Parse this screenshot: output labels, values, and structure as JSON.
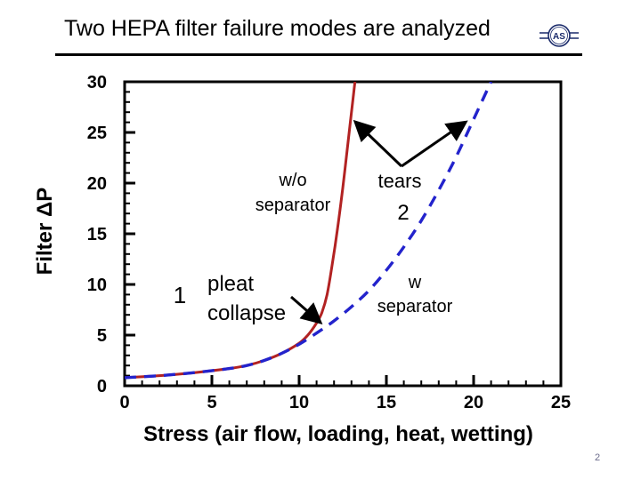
{
  "slide": {
    "title": "Two HEPA filter failure modes are analyzed",
    "logo_text": "AS",
    "page_number": "2"
  },
  "chart_data": {
    "type": "line",
    "xlabel": "Stress (air flow, loading, heat, wetting)",
    "ylabel": "Filter ΔP",
    "xlim": [
      0,
      25
    ],
    "ylim": [
      0,
      30
    ],
    "x_ticks": [
      "0",
      "5",
      "10",
      "15",
      "20",
      "25"
    ],
    "y_ticks": [
      "0",
      "5",
      "10",
      "15",
      "20",
      "25",
      "30"
    ],
    "grid": false,
    "series": [
      {
        "name": "w/o separator",
        "color": "#b22222",
        "style": "solid",
        "x": [
          0,
          2,
          4,
          6,
          7,
          8,
          9,
          10,
          10.5,
          11,
          11.3,
          11.6,
          11.9,
          12.2,
          12.5,
          12.8,
          13.0,
          13.2
        ],
        "y": [
          0.8,
          1.0,
          1.3,
          1.7,
          2.0,
          2.5,
          3.2,
          4.2,
          5.0,
          6.2,
          7.2,
          9.0,
          12.0,
          15.5,
          19.5,
          24.0,
          27.0,
          30.0
        ]
      },
      {
        "name": "w separator",
        "color": "#2323cc",
        "style": "dashed",
        "x": [
          0,
          2,
          4,
          6,
          7,
          8,
          9,
          10,
          11,
          12,
          13,
          14,
          15,
          16,
          17,
          18,
          19,
          20,
          21
        ],
        "y": [
          0.8,
          1.0,
          1.3,
          1.7,
          2.0,
          2.5,
          3.2,
          4.1,
          5.2,
          6.4,
          7.8,
          9.4,
          11.4,
          13.7,
          16.3,
          19.3,
          22.6,
          26.3,
          30.0
        ]
      }
    ],
    "annotations": {
      "wo_separator": [
        "w/o",
        "separator"
      ],
      "tears": "tears",
      "mode2": "2",
      "w_separator": [
        "w",
        "separator"
      ],
      "mode1": "1",
      "pleat_collapse": [
        "pleat",
        "collapse"
      ]
    }
  }
}
